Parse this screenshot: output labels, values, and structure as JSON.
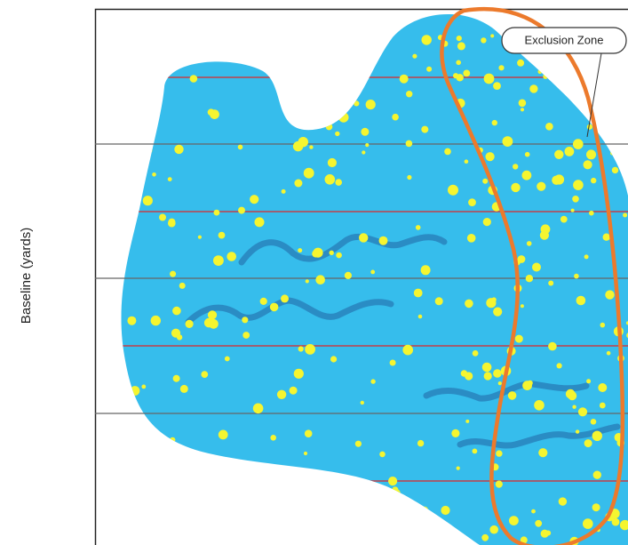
{
  "diagram": {
    "axis_label": "Baseline (yards)",
    "callout": "Exclusion Zone"
  }
}
